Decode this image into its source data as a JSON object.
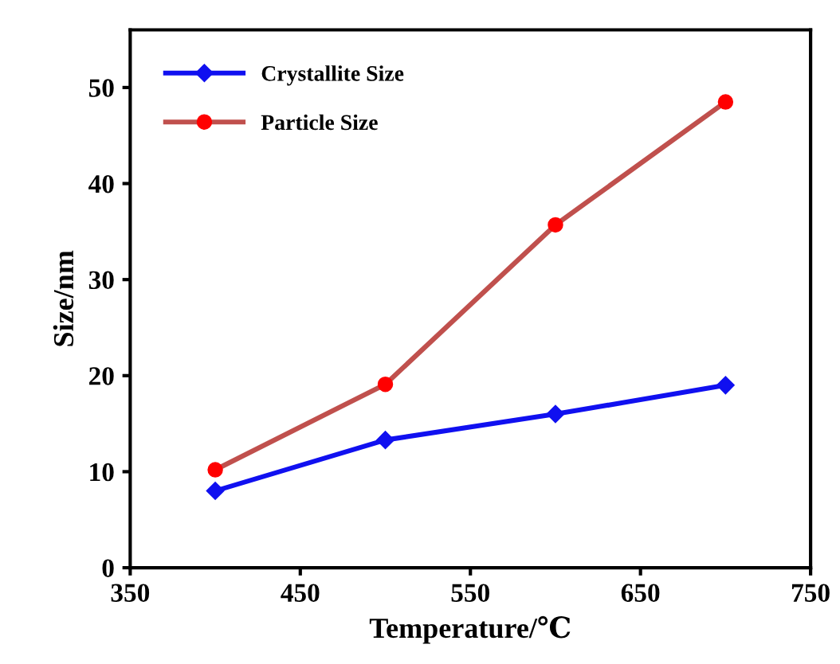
{
  "chart_data": {
    "type": "line",
    "xlabel": "Temperature/℃",
    "ylabel": "Size/nm",
    "x": [
      400,
      500,
      600,
      700
    ],
    "series": [
      {
        "name": "Crystallite Size",
        "color": "#1010f0",
        "marker": "diamond",
        "values": [
          8,
          13.3,
          16,
          19
        ]
      },
      {
        "name": "Particle Size",
        "color": "#c0504d",
        "marker": "circle",
        "values": [
          10.2,
          19.1,
          35.7,
          48.5
        ]
      }
    ],
    "xlim": [
      350,
      750
    ],
    "xticks": [
      350,
      450,
      550,
      650,
      750
    ],
    "ylim": [
      0,
      56
    ],
    "yticks": [
      0,
      10,
      20,
      30,
      40,
      50
    ],
    "grid": false,
    "legend": "top left",
    "line_style": "solid"
  }
}
